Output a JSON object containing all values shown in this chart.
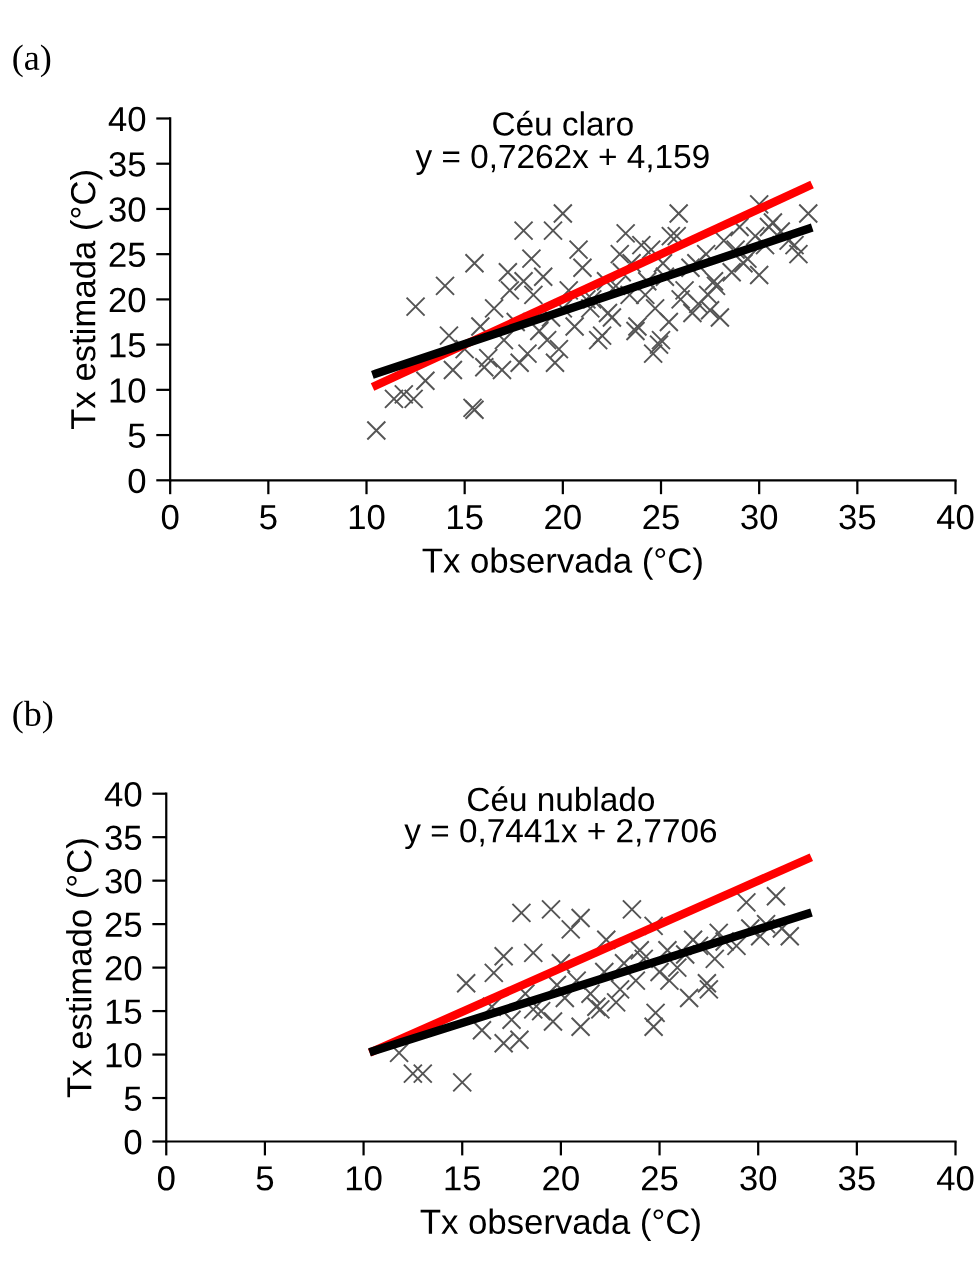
{
  "chart_data": [
    {
      "type": "scatter",
      "title": "(a)",
      "xlabel": "Tx observada (°C)",
      "ylabel": "Tx estimada (°C)",
      "annotations": [
        "Céu claro",
        "y = 0,7262x + 4,159"
      ],
      "xlim": [
        0,
        40
      ],
      "ylim": [
        0,
        40
      ],
      "xticks": [
        0,
        5,
        10,
        15,
        20,
        25,
        30,
        35,
        40
      ],
      "yticks": [
        0,
        5,
        10,
        15,
        20,
        25,
        30,
        35,
        40
      ],
      "grid": false,
      "legend": false,
      "series": [
        {
          "marker": "cross",
          "color": "#555555",
          "x": [
            10.5,
            12.5,
            11.4,
            12.4,
            11.9,
            13.0,
            14.0,
            15.4,
            15.5,
            15.5,
            18.0,
            20.0,
            19.5,
            24.6,
            24.9,
            25.9,
            30.0,
            30.0,
            32.5,
            32.0,
            28.0,
            27.5,
            17.8,
            16.9,
            14.4,
            19.2,
            21.2,
            23.2,
            14.2,
            15.0,
            15.8,
            16.2,
            16.5,
            17.0,
            17.3,
            17.6,
            18.2,
            18.5,
            18.8,
            19.0,
            19.4,
            19.8,
            20.3,
            20.6,
            21.0,
            21.4,
            21.8,
            22.2,
            22.5,
            22.9,
            23.4,
            23.7,
            24.0,
            24.3,
            24.7,
            25.1,
            25.4,
            25.8,
            26.2,
            26.5,
            26.9,
            27.3,
            27.7,
            28.2,
            28.6,
            29.0,
            29.4,
            29.8,
            30.3,
            30.7,
            31.1,
            31.5,
            16.0,
            17.2,
            18.4,
            19.6,
            20.8,
            22.0,
            23.0,
            24.2,
            25.5,
            26.6,
            27.8,
            29.2,
            30.5,
            31.8,
            21.5,
            22.7,
            23.8,
            24.5,
            25.2,
            26.0,
            26.8,
            27.4,
            28.8,
            20.0,
            18.0,
            22.3,
            23.5,
            25.0
          ],
          "values": [
            5.5,
            19.2,
            9,
            9,
            9.5,
            11,
            21.5,
            8,
            7.8,
            24,
            27.6,
            29.5,
            27.6,
            14,
            15,
            29.5,
            30.5,
            22.7,
            29.5,
            25,
            18,
            18.8,
            13,
            12.2,
            12.2,
            15.5,
            20,
            27.3,
            16,
            14.5,
            17,
            13.5,
            19,
            15.5,
            21,
            17.5,
            14,
            20.5,
            16.5,
            22.5,
            18,
            14.5,
            21,
            17,
            23.5,
            19,
            15.5,
            22,
            18,
            25,
            20.5,
            16.5,
            26,
            22,
            19,
            24,
            17.5,
            27,
            21,
            23.5,
            19.5,
            25,
            22,
            26.5,
            23,
            28,
            24.5,
            27,
            26,
            28.5,
            27.5,
            26.5,
            12.5,
            23,
            24.5,
            13,
            25.5,
            16,
            23,
            20.5,
            27,
            18.5,
            21.5,
            24,
            28,
            26,
            20,
            21.5,
            17,
            25.5,
            22.5,
            20,
            24,
            20.5,
            25.5,
            19,
            22,
            18.5,
            24,
            15.5
          ]
        },
        {
          "type": "line",
          "marker": "none",
          "color": "#ff0000",
          "x": [
            10.5,
            32.5
          ],
          "values": [
            10.5,
            32.5
          ]
        },
        {
          "type": "line",
          "marker": "none",
          "color": "#000000",
          "x": [
            10.5,
            32.5
          ],
          "values": [
            11.8,
            27.8
          ]
        }
      ]
    },
    {
      "type": "scatter",
      "title": "(b)",
      "xlabel": "Tx observada (°C)",
      "ylabel": "Tx estimado (°C)",
      "annotations": [
        "Céu nublado",
        "y = 0,7441x + 2,7706"
      ],
      "xlim": [
        0,
        40
      ],
      "ylim": [
        0,
        40
      ],
      "xticks": [
        0,
        5,
        10,
        15,
        20,
        25,
        30,
        35,
        40
      ],
      "yticks": [
        0,
        5,
        10,
        15,
        20,
        25,
        30,
        35,
        40
      ],
      "grid": false,
      "legend": false,
      "series": [
        {
          "marker": "cross",
          "color": "#555555",
          "x": [
            11.8,
            12.5,
            13.0,
            15.0,
            18.0,
            19.5,
            21.0,
            20.5,
            23.6,
            24.7,
            29.4,
            30.9,
            31.6,
            30.1,
            15.2,
            17.1,
            16.6,
            17.1,
            17.9,
            18.6,
            19.6,
            21.0,
            22.0,
            24.7,
            24.8,
            27.4,
            27.5,
            26.7,
            22.3,
            16.0,
            18.6,
            16.5,
            17.5,
            18.2,
            19.0,
            19.8,
            20.2,
            20.8,
            21.5,
            22.2,
            22.8,
            23.2,
            23.8,
            24.2,
            25.0,
            25.4,
            25.9,
            26.3,
            27.0,
            27.8,
            28.3,
            28.9,
            29.6,
            30.4,
            31.2,
            20.0,
            21.8,
            23.0,
            24.0,
            25.5,
            26.5,
            28.0
          ],
          "values": [
            10.2,
            7.8,
            7.8,
            6.8,
            26.3,
            26.7,
            25.7,
            24.4,
            26.7,
            24.8,
            27.5,
            28.2,
            23.6,
            23.6,
            18.2,
            21.3,
            19.4,
            11.3,
            11.7,
            21.7,
            13.8,
            13.2,
            15.2,
            13.2,
            14.8,
            18.2,
            17.5,
            23.2,
            23.2,
            12.8,
            15.2,
            15.5,
            14,
            17,
            15,
            18,
            16.5,
            18.5,
            17,
            19.5,
            16,
            20.5,
            18.5,
            21,
            19.5,
            22,
            20,
            21.5,
            22.5,
            21,
            23,
            22.5,
            24.5,
            25,
            24.5,
            20.5,
            15.5,
            17.5,
            22,
            18.5,
            16.5,
            24
          ]
        },
        {
          "type": "line",
          "marker": "none",
          "color": "#ff0000",
          "x": [
            10.5,
            32.5
          ],
          "values": [
            10.4,
            32.5
          ]
        },
        {
          "type": "line",
          "marker": "none",
          "color": "#000000",
          "x": [
            10.5,
            32.5
          ],
          "values": [
            10.4,
            26.2
          ]
        }
      ]
    }
  ]
}
